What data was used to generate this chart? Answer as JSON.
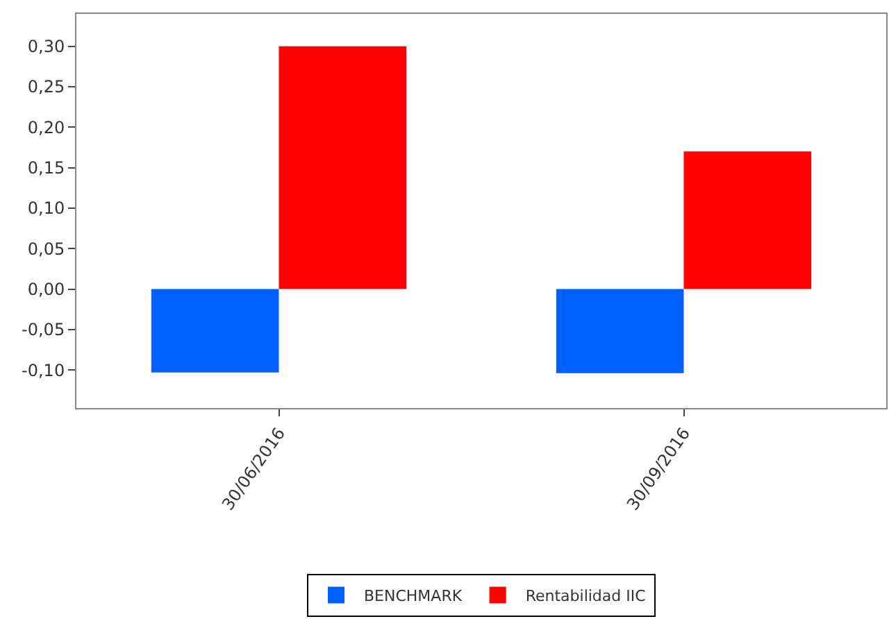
{
  "chart_data": {
    "type": "bar",
    "categories": [
      "30/06/2016",
      "30/09/2016"
    ],
    "series": [
      {
        "name": "BENCHMARK",
        "color": "#0060ff",
        "values": [
          -0.103,
          -0.104
        ]
      },
      {
        "name": "Rentabilidad IIC",
        "color": "#ff0000",
        "values": [
          0.3,
          0.17
        ]
      }
    ],
    "ylim": [
      -0.147,
      0.34
    ],
    "yticks": [
      {
        "value": -0.1,
        "label": "-0,10"
      },
      {
        "value": -0.05,
        "label": "-0,05"
      },
      {
        "value": 0.0,
        "label": "0,00"
      },
      {
        "value": 0.05,
        "label": "0,05"
      },
      {
        "value": 0.1,
        "label": "0,10"
      },
      {
        "value": 0.15,
        "label": "0,15"
      },
      {
        "value": 0.2,
        "label": "0,20"
      },
      {
        "value": 0.25,
        "label": "0,25"
      },
      {
        "value": 0.3,
        "label": "0,30"
      }
    ],
    "legend": "bottom"
  }
}
